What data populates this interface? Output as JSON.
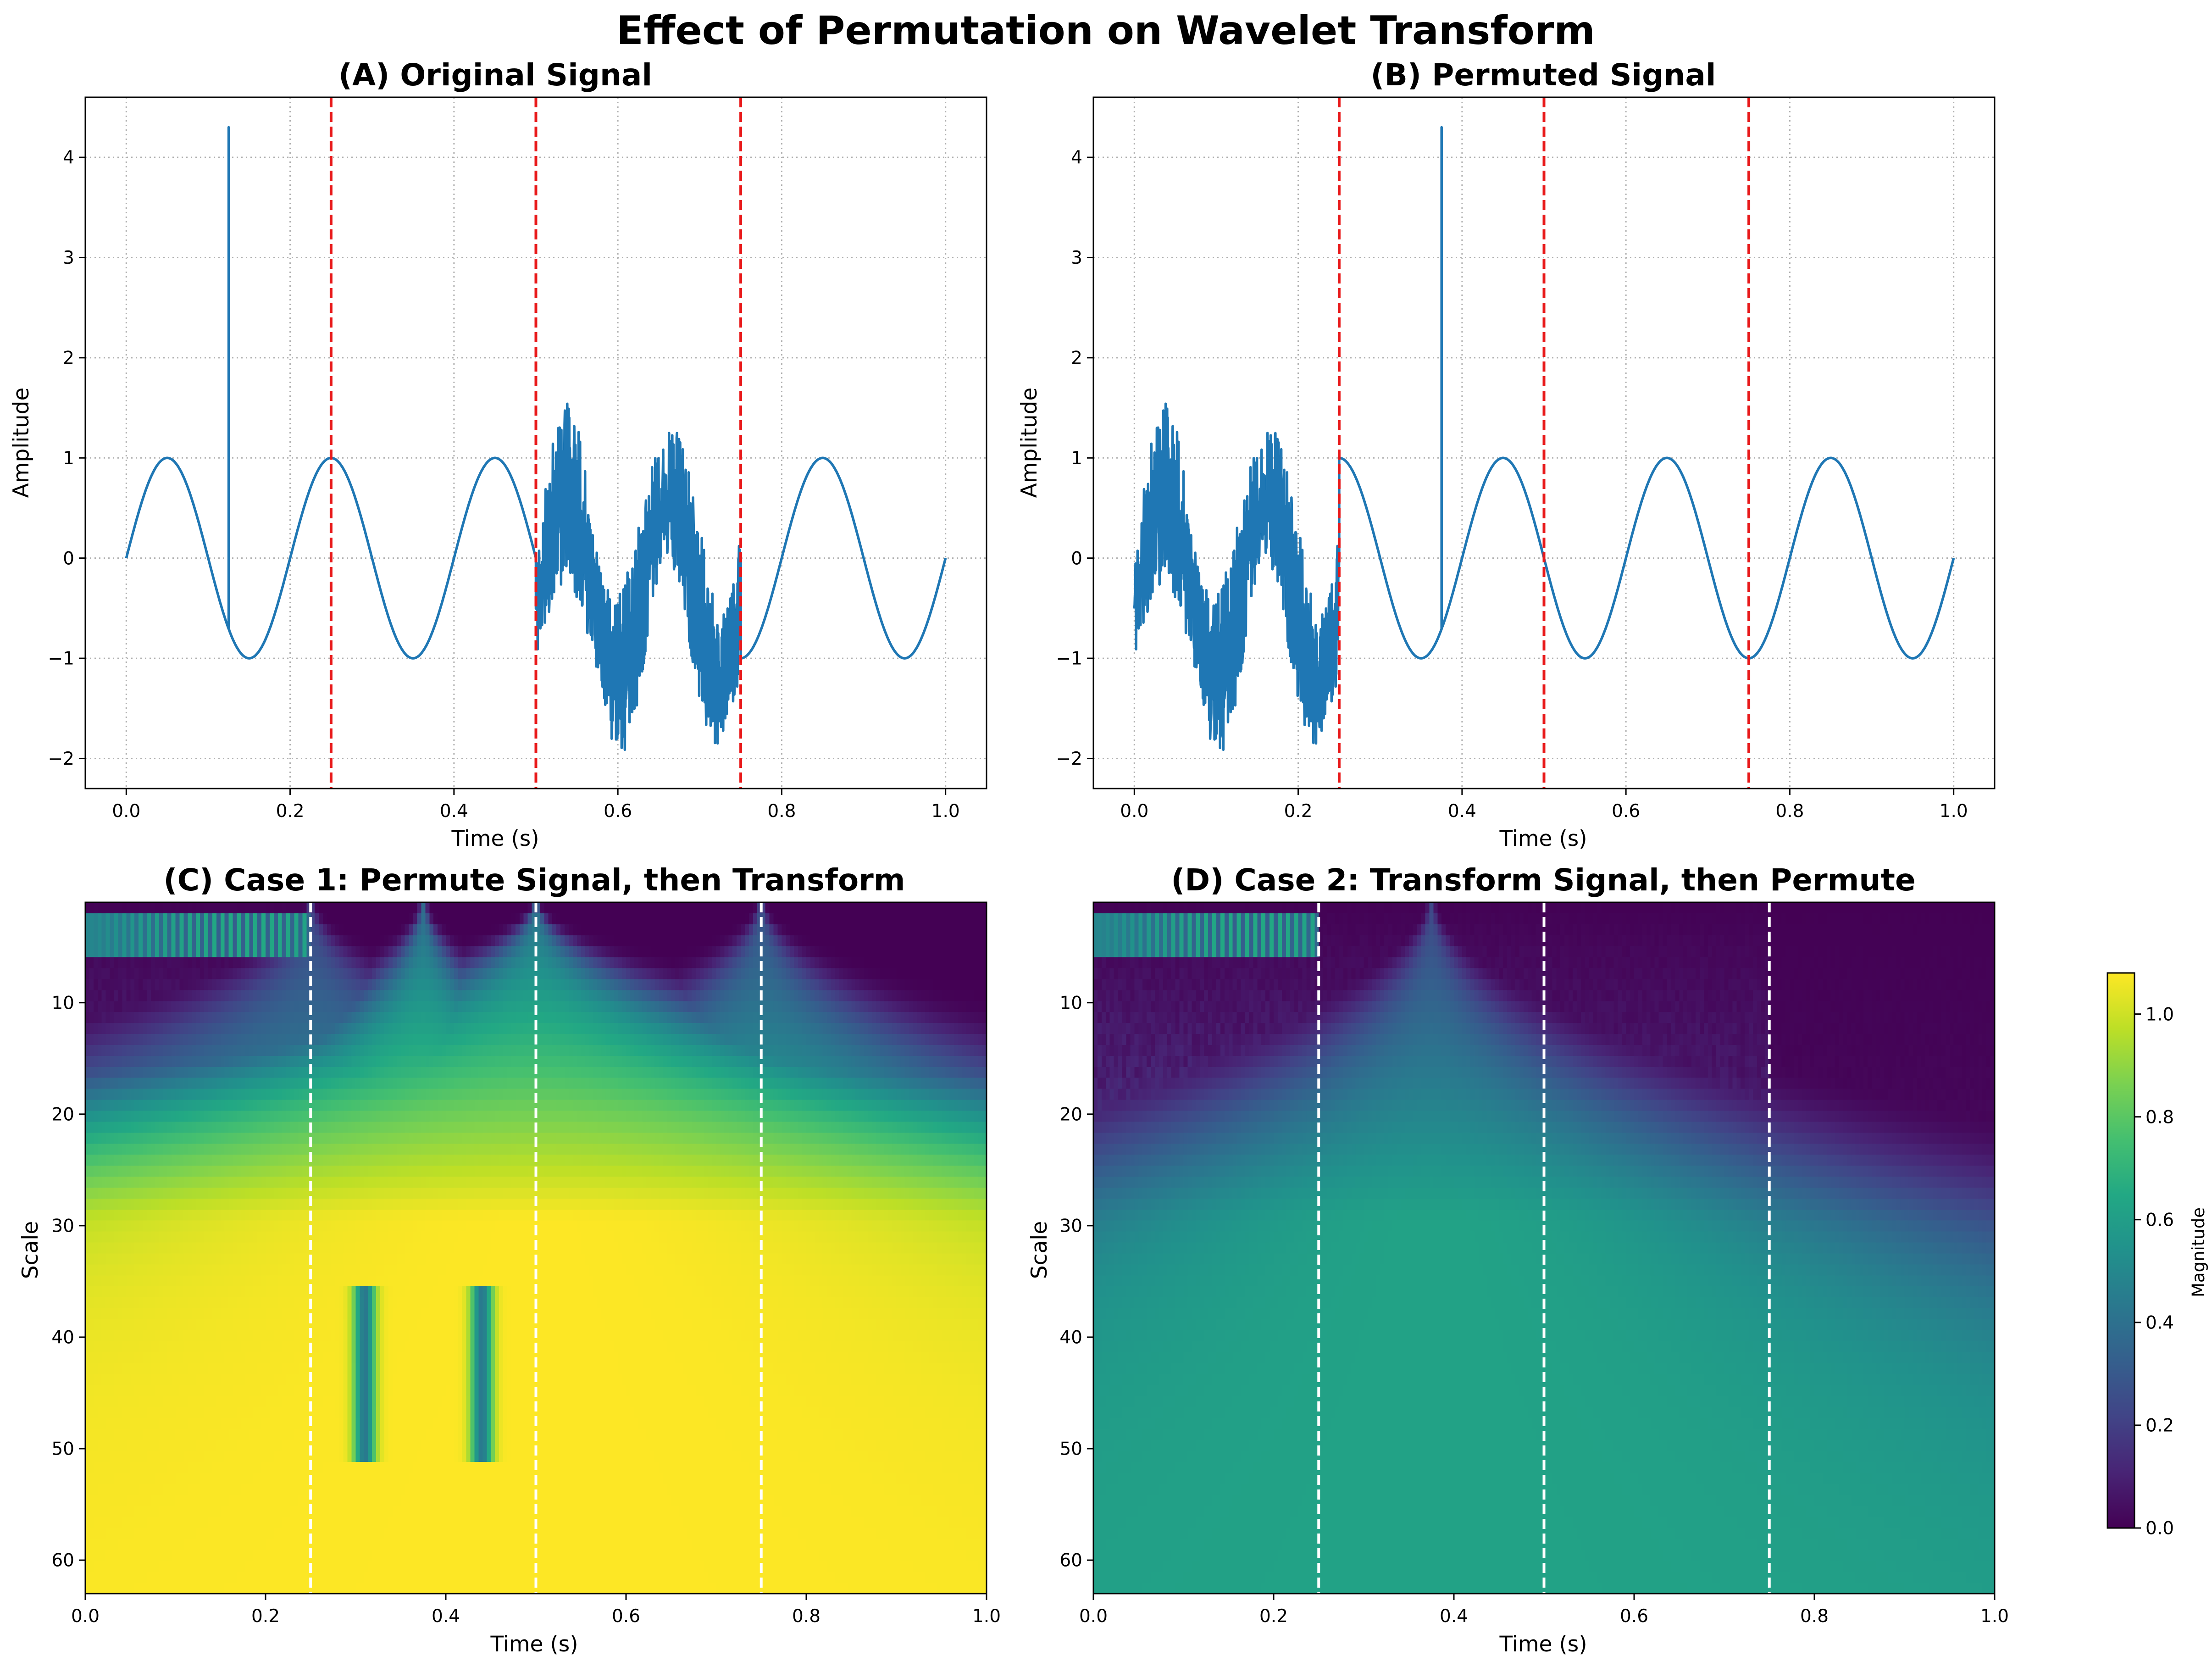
{
  "figure_title": "Effect of Permutation on Wavelet Transform",
  "colors": {
    "signal": "#1f77b4",
    "boundary_signal": "#e8191a",
    "boundary_scalogram": "#ffffff",
    "grid": "#b0b0b0",
    "colormap": "viridis"
  },
  "chart_data": [
    {
      "id": "A",
      "type": "line",
      "title": "(A) Original Signal",
      "xlabel": "Time (s)",
      "ylabel": "Amplitude",
      "xlim": [
        -0.05,
        1.05
      ],
      "ylim": [
        -2.3,
        4.6
      ],
      "xticks": [
        0.0,
        0.2,
        0.4,
        0.6,
        0.8,
        1.0
      ],
      "yticks": [
        -2,
        -1,
        0,
        1,
        2,
        3,
        4
      ],
      "xtick_labels": [
        "0.0",
        "0.2",
        "0.4",
        "0.6",
        "0.8",
        "1.0"
      ],
      "ytick_labels": [
        "−2",
        "−1",
        "0",
        "1",
        "2",
        "3",
        "4"
      ],
      "grid": true,
      "boundaries": [
        0.25,
        0.5,
        0.75
      ],
      "series": [
        {
          "segments": [
            {
              "t": [
                0.0,
                0.25
              ],
              "kind": "sine",
              "freq_hz": 5
            },
            {
              "t": [
                0.25,
                0.5
              ],
              "kind": "sine",
              "freq_hz": 5
            },
            {
              "t": [
                0.5,
                0.75
              ],
              "kind": "noisy_chirp",
              "range": [
                -2.0,
                2.0
              ]
            },
            {
              "t": [
                0.75,
                1.0
              ],
              "kind": "sine",
              "freq_hz": 5
            }
          ],
          "spike": {
            "t": 0.125,
            "peak": 4.3,
            "base": -0.7
          }
        }
      ]
    },
    {
      "id": "B",
      "type": "line",
      "title": "(B) Permuted Signal",
      "xlabel": "Time (s)",
      "ylabel": "Amplitude",
      "xlim": [
        -0.05,
        1.05
      ],
      "ylim": [
        -2.3,
        4.6
      ],
      "xticks": [
        0.0,
        0.2,
        0.4,
        0.6,
        0.8,
        1.0
      ],
      "yticks": [
        -2,
        -1,
        0,
        1,
        2,
        3,
        4
      ],
      "xtick_labels": [
        "0.0",
        "0.2",
        "0.4",
        "0.6",
        "0.8",
        "1.0"
      ],
      "ytick_labels": [
        "−2",
        "−1",
        "0",
        "1",
        "2",
        "3",
        "4"
      ],
      "grid": true,
      "boundaries": [
        0.25,
        0.5,
        0.75
      ],
      "series": [
        {
          "segments": [
            {
              "t": [
                0.0,
                0.25
              ],
              "kind": "noisy_chirp",
              "range": [
                -2.0,
                2.0
              ]
            },
            {
              "t": [
                0.25,
                0.5
              ],
              "kind": "sine",
              "freq_hz": 5
            },
            {
              "t": [
                0.5,
                0.75
              ],
              "kind": "sine",
              "freq_hz": 5
            },
            {
              "t": [
                0.75,
                1.0
              ],
              "kind": "sine",
              "freq_hz": 5
            }
          ],
          "spike": {
            "t": 0.375,
            "peak": 4.3,
            "base": -0.7
          }
        }
      ]
    },
    {
      "id": "C",
      "type": "heatmap",
      "title": "(C) Case 1: Permute Signal, then Transform",
      "xlabel": "Time (s)",
      "ylabel": "Scale",
      "xlim": [
        0.0,
        1.0
      ],
      "ylim": [
        63,
        1
      ],
      "xticks": [
        0.0,
        0.2,
        0.4,
        0.6,
        0.8,
        1.0
      ],
      "yticks": [
        10,
        20,
        30,
        40,
        50,
        60
      ],
      "xtick_labels": [
        "0.0",
        "0.2",
        "0.4",
        "0.6",
        "0.8",
        "1.0"
      ],
      "ytick_labels": [
        "10",
        "20",
        "30",
        "40",
        "50",
        "60"
      ],
      "boundaries": [
        0.25,
        0.5,
        0.75
      ],
      "hf_band": {
        "t": [
          0.0,
          0.25
        ],
        "scales": [
          2,
          5
        ],
        "peak": 0.65
      },
      "cones": [
        {
          "t": 0.25,
          "peak": 0.6,
          "spread": 0.0022
        },
        {
          "t": 0.375,
          "peak": 1.0,
          "spread": 0.0015
        },
        {
          "t": 0.5,
          "peak": 1.08,
          "spread": 0.0032
        },
        {
          "t": 0.75,
          "peak": 0.72,
          "spread": 0.0019
        }
      ],
      "troughs": [
        0.31,
        0.44
      ]
    },
    {
      "id": "D",
      "type": "heatmap",
      "title": "(D) Case 2: Transform Signal, then Permute",
      "xlabel": "Time (s)",
      "ylabel": "Scale",
      "xlim": [
        0.0,
        1.0
      ],
      "ylim": [
        63,
        1
      ],
      "xticks": [
        0.0,
        0.2,
        0.4,
        0.6,
        0.8,
        1.0
      ],
      "yticks": [
        10,
        20,
        30,
        40,
        50,
        60
      ],
      "xtick_labels": [
        "0.0",
        "0.2",
        "0.4",
        "0.6",
        "0.8",
        "1.0"
      ],
      "ytick_labels": [
        "10",
        "20",
        "30",
        "40",
        "50",
        "60"
      ],
      "boundaries": [
        0.25,
        0.5,
        0.75
      ],
      "hf_band": {
        "t": [
          0.0,
          0.25
        ],
        "scales": [
          2,
          5
        ],
        "peak": 0.65
      },
      "cones": [
        {
          "t": 0.375,
          "peak": 0.62,
          "spread": 0.0013
        }
      ],
      "background_levels": [
        {
          "t": [
            0.0,
            0.25
          ],
          "level": 0.14
        },
        {
          "t": [
            0.25,
            0.5
          ],
          "level": 0.12
        },
        {
          "t": [
            0.5,
            0.75
          ],
          "level": 0.1
        },
        {
          "t": [
            0.75,
            1.0
          ],
          "level": 0.02
        }
      ]
    }
  ],
  "colorbar": {
    "label": "Magnitude",
    "range": [
      0.0,
      1.08
    ],
    "ticks": [
      0.0,
      0.2,
      0.4,
      0.6,
      0.8,
      1.0
    ],
    "tick_labels": [
      "0.0",
      "0.2",
      "0.4",
      "0.6",
      "0.8",
      "1.0"
    ]
  }
}
